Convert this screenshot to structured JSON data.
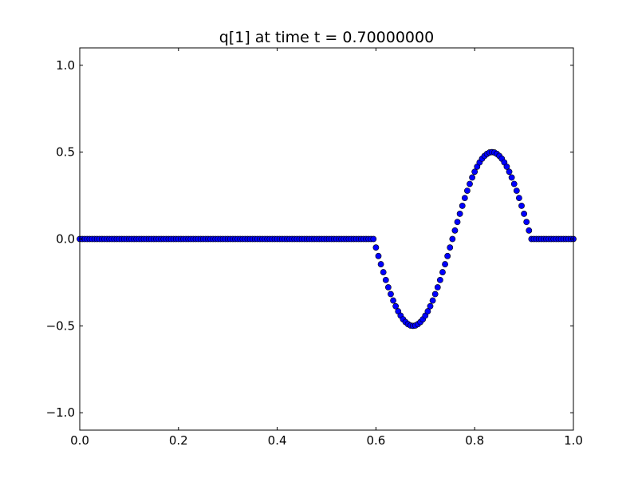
{
  "chart_data": {
    "type": "scatter",
    "title": "q[1] at time t =     0.70000000",
    "xlabel": "",
    "ylabel": "",
    "xlim": [
      0.0,
      1.0
    ],
    "ylim": [
      -1.1,
      1.1
    ],
    "xticks": [
      0.0,
      0.2,
      0.4,
      0.6,
      0.8,
      1.0
    ],
    "xtick_labels": [
      "0.0",
      "0.2",
      "0.4",
      "0.6",
      "0.8",
      "1.0"
    ],
    "yticks": [
      -1.0,
      -0.5,
      0.0,
      0.5,
      1.0
    ],
    "ytick_labels": [
      "−1.0",
      "−0.5",
      "0.0",
      "0.5",
      "1.0"
    ],
    "grid": false,
    "marker": "circle",
    "marker_face_color": "#0000ff",
    "marker_edge_color": "#000000",
    "x": [
      0,
      0.005,
      0.01,
      0.015,
      0.02,
      0.025,
      0.03,
      0.035,
      0.04,
      0.045,
      0.05,
      0.055,
      0.06,
      0.065,
      0.07,
      0.075,
      0.08,
      0.085,
      0.09,
      0.095,
      0.1,
      0.105,
      0.11,
      0.115,
      0.12,
      0.125,
      0.13,
      0.135,
      0.14,
      0.145,
      0.15,
      0.155,
      0.16,
      0.165,
      0.17,
      0.175,
      0.18,
      0.185,
      0.19,
      0.195,
      0.2,
      0.205,
      0.21,
      0.215,
      0.22,
      0.225,
      0.23,
      0.235,
      0.24,
      0.245,
      0.25,
      0.255,
      0.26,
      0.265,
      0.27,
      0.275,
      0.28,
      0.285,
      0.29,
      0.295,
      0.3,
      0.305,
      0.31,
      0.315,
      0.32,
      0.325,
      0.33,
      0.335,
      0.34,
      0.345,
      0.35,
      0.355,
      0.36,
      0.365,
      0.37,
      0.375,
      0.38,
      0.385,
      0.39,
      0.395,
      0.4,
      0.405,
      0.41,
      0.415,
      0.42,
      0.425,
      0.43,
      0.435,
      0.44,
      0.445,
      0.45,
      0.455,
      0.46,
      0.465,
      0.47,
      0.475,
      0.48,
      0.485,
      0.49,
      0.495,
      0.5,
      0.505,
      0.51,
      0.515,
      0.52,
      0.525,
      0.53,
      0.535,
      0.54,
      0.545,
      0.55,
      0.555,
      0.56,
      0.565,
      0.57,
      0.575,
      0.58,
      0.585,
      0.59,
      0.595,
      0.6,
      0.605,
      0.61,
      0.615,
      0.62,
      0.625,
      0.63,
      0.635,
      0.64,
      0.645,
      0.65,
      0.655,
      0.66,
      0.665,
      0.67,
      0.675,
      0.68,
      0.685,
      0.69,
      0.695,
      0.7,
      0.705,
      0.71,
      0.715,
      0.72,
      0.725,
      0.73,
      0.735,
      0.74,
      0.745,
      0.75,
      0.755,
      0.76,
      0.765,
      0.77,
      0.775,
      0.78,
      0.785,
      0.79,
      0.795,
      0.8,
      0.805,
      0.81,
      0.815,
      0.82,
      0.825,
      0.83,
      0.835,
      0.84,
      0.845,
      0.85,
      0.855,
      0.86,
      0.865,
      0.87,
      0.875,
      0.88,
      0.885,
      0.89,
      0.895,
      0.9,
      0.905,
      0.91,
      0.915,
      0.92,
      0.925,
      0.93,
      0.935,
      0.94,
      0.945,
      0.95,
      0.955,
      0.96,
      0.965,
      0.97,
      0.975,
      0.98,
      0.985,
      0.99,
      0.995,
      1.0
    ],
    "y": [
      0,
      0,
      0,
      0,
      0,
      0,
      0,
      0,
      0,
      0,
      0,
      0,
      0,
      0,
      0,
      0,
      0,
      0,
      0,
      0,
      0,
      0,
      0,
      0,
      0,
      0,
      0,
      0,
      0,
      0,
      0,
      0,
      0,
      0,
      0,
      0,
      0,
      0,
      0,
      0,
      0,
      0,
      0,
      0,
      0,
      0,
      0,
      0,
      0,
      0,
      0,
      0,
      0,
      0,
      0,
      0,
      0,
      0,
      0,
      0,
      0,
      0,
      0,
      0,
      0,
      0,
      0,
      0,
      0,
      0,
      0,
      0,
      0,
      0,
      0,
      0,
      0,
      0,
      0,
      0,
      0,
      0,
      0,
      0,
      0,
      0,
      0,
      0,
      0,
      0,
      0,
      0,
      0,
      0,
      0,
      0,
      0,
      0,
      0,
      0,
      0,
      0,
      0,
      0,
      0,
      0,
      0,
      0,
      0,
      0,
      0,
      0,
      0,
      0,
      0,
      0,
      0,
      0,
      0,
      0,
      -0.049,
      -0.098,
      -0.145,
      -0.191,
      -0.236,
      -0.278,
      -0.317,
      -0.354,
      -0.387,
      -0.416,
      -0.441,
      -0.462,
      -0.478,
      -0.49,
      -0.498,
      -0.5,
      -0.498,
      -0.49,
      -0.478,
      -0.462,
      -0.441,
      -0.416,
      -0.387,
      -0.354,
      -0.317,
      -0.278,
      -0.236,
      -0.191,
      -0.145,
      -0.098,
      -0.049,
      0,
      0.049,
      0.098,
      0.145,
      0.191,
      0.236,
      0.278,
      0.317,
      0.354,
      0.387,
      0.416,
      0.441,
      0.462,
      0.478,
      0.49,
      0.498,
      0.5,
      0.498,
      0.49,
      0.478,
      0.462,
      0.441,
      0.416,
      0.387,
      0.354,
      0.317,
      0.278,
      0.236,
      0.191,
      0.145,
      0.098,
      0.049,
      0,
      0,
      0,
      0,
      0,
      0,
      0,
      0,
      0,
      0,
      0,
      0,
      0,
      0,
      0,
      0,
      0,
      0
    ]
  }
}
